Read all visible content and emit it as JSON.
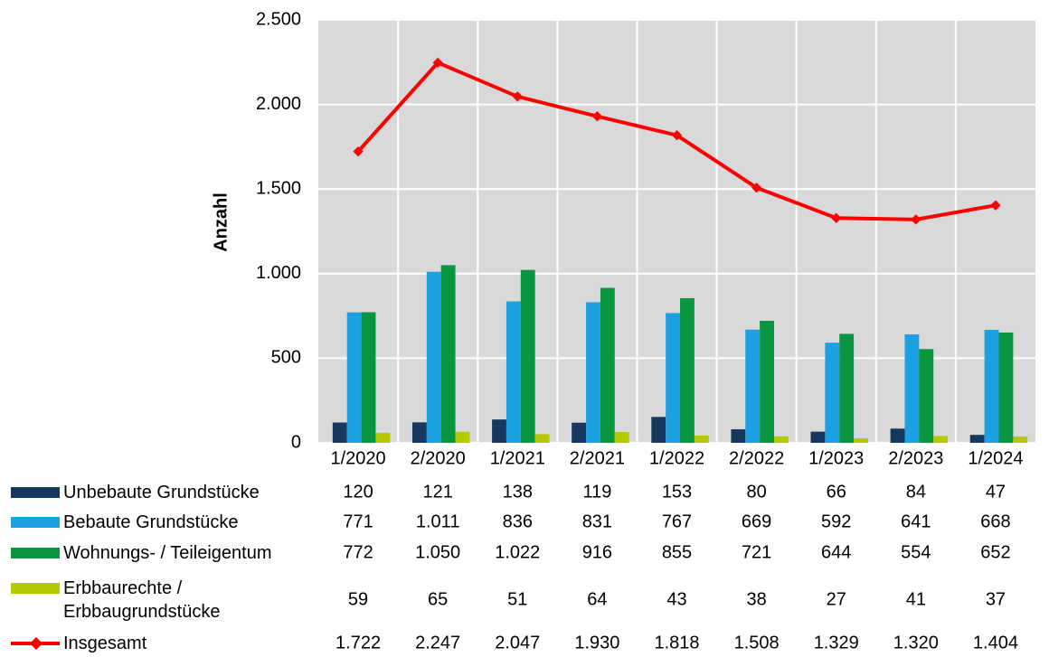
{
  "chart_data": {
    "type": "bar",
    "y_label": "Anzahl",
    "categories": [
      "1/2020",
      "2/2020",
      "1/2021",
      "2/2021",
      "1/2022",
      "2/2022",
      "1/2023",
      "2/2023",
      "1/2024"
    ],
    "ylim": [
      0,
      2500
    ],
    "yticks": [
      0,
      500,
      {
        "value": 1000,
        "label": "1.000"
      },
      {
        "value": 1500,
        "label": "1.500"
      },
      {
        "value": 2000,
        "label": "2.000"
      },
      {
        "value": 2500,
        "label": "2.500"
      }
    ],
    "grid": true,
    "series": [
      {
        "name": "Unbebaute Grundstücke",
        "color": "#17375e",
        "values": [
          120,
          121,
          138,
          119,
          153,
          80,
          66,
          84,
          47
        ]
      },
      {
        "name": "Bebaute Grundstücke",
        "color": "#1ba1e2",
        "values": [
          771,
          1011,
          836,
          831,
          767,
          669,
          592,
          641,
          668
        ],
        "value_labels": [
          "771",
          "1.011",
          "836",
          "831",
          "767",
          "669",
          "592",
          "641",
          "668"
        ]
      },
      {
        "name": "Wohnungs- / Teileigentum",
        "color": "#0a9640",
        "values": [
          772,
          1050,
          1022,
          916,
          855,
          721,
          644,
          554,
          652
        ],
        "value_labels": [
          "772",
          "1.050",
          "1.022",
          "916",
          "855",
          "721",
          "644",
          "554",
          "652"
        ]
      },
      {
        "name": "Erbbaurechte / Erbbaugrundstücke",
        "color": "#b5c800",
        "values": [
          59,
          65,
          51,
          64,
          43,
          38,
          27,
          41,
          37
        ]
      },
      {
        "name": "Insgesamt",
        "type": "line",
        "color": "#ff0000",
        "values": [
          1722,
          2247,
          2047,
          1930,
          1818,
          1508,
          1329,
          1320,
          1404
        ],
        "value_labels": [
          "1.722",
          "2.247",
          "2.047",
          "1.930",
          "1.818",
          "1.508",
          "1.329",
          "1.320",
          "1.404"
        ]
      }
    ]
  }
}
